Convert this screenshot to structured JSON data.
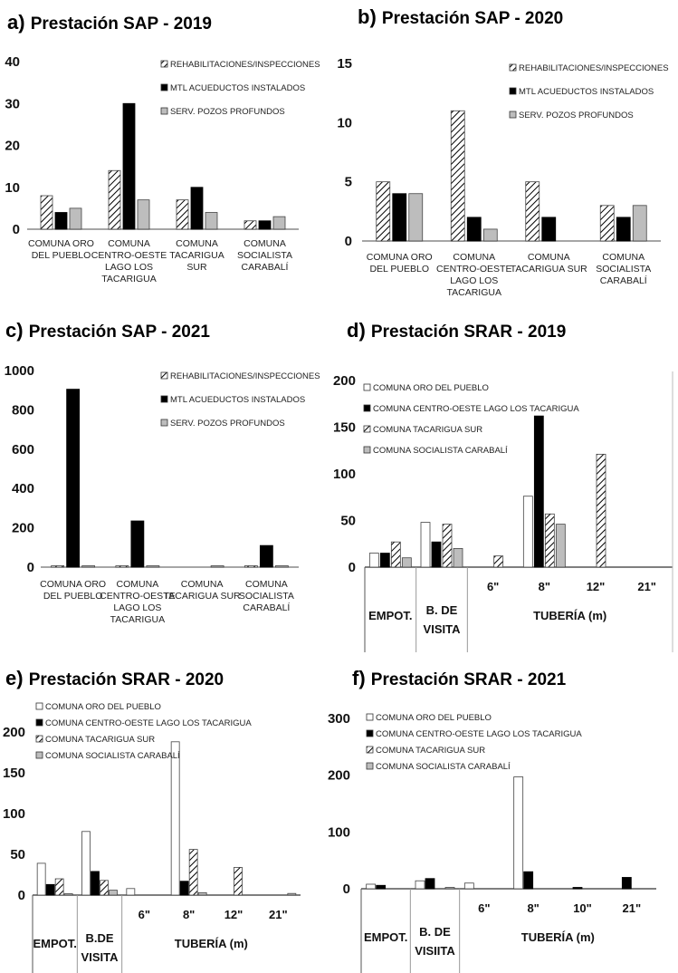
{
  "chart_data": [
    {
      "id": "a",
      "panel_label": "a)",
      "type": "bar",
      "title": "Prestación SAP - 2019",
      "categories": [
        "COMUNA ORO|DEL PUEBLO",
        "COMUNA|CENTRO-OESTE|LAGO LOS|TACARIGUA",
        "COMUNA|TACARIGUA|SUR",
        "COMUNA|SOCIALISTA|CARABALÍ"
      ],
      "series": [
        {
          "name": "REHABILITACIONES/INSPECCIONES",
          "style": "hatch",
          "values": [
            8,
            14,
            7,
            2
          ]
        },
        {
          "name": "MTL ACUEDUCTOS INSTALADOS",
          "style": "black",
          "values": [
            4,
            30,
            10,
            2
          ]
        },
        {
          "name": "SERV. POZOS PROFUNDOS",
          "style": "gray",
          "values": [
            5,
            7,
            4,
            3
          ]
        }
      ],
      "ylim": [
        0,
        40
      ],
      "yticks": [
        0,
        10,
        20,
        30,
        40
      ],
      "legend": "top-right",
      "xlabel": "",
      "ylabel": ""
    },
    {
      "id": "b",
      "panel_label": "b)",
      "type": "bar",
      "title": "Prestación SAP - 2020",
      "categories": [
        "COMUNA ORO|DEL PUEBLO",
        "COMUNA|CENTRO-OESTE|LAGO LOS|TACARIGUA",
        "COMUNA|TACARIGUA SUR",
        "COMUNA|SOCIALISTA|CARABALÍ"
      ],
      "series": [
        {
          "name": "REHABILITACIONES/INSPECCIONES",
          "style": "hatch",
          "values": [
            5,
            11,
            5,
            3
          ]
        },
        {
          "name": "MTL ACUEDUCTOS INSTALADOS",
          "style": "black",
          "values": [
            4,
            2,
            2,
            2
          ]
        },
        {
          "name": "SERV. POZOS PROFUNDOS",
          "style": "gray",
          "values": [
            4,
            1,
            0,
            3
          ]
        }
      ],
      "ylim": [
        0,
        15
      ],
      "yticks": [
        0,
        5,
        10,
        15
      ],
      "legend": "top-right",
      "xlabel": "",
      "ylabel": ""
    },
    {
      "id": "c",
      "panel_label": "c)",
      "type": "bar",
      "title": "Prestación SAP - 2021",
      "categories": [
        "COMUNA ORO|DEL PUEBLO",
        "COMUNA|CENTRO-OESTE|LAGO LOS|TACARIGUA",
        "COMUNA|TACARIGUA SUR",
        "COMUNA|SOCIALISTA|CARABALÍ"
      ],
      "series": [
        {
          "name": "REHABILITACIONES/INSPECCIONES",
          "style": "hatch",
          "values": [
            2,
            2,
            0,
            2
          ]
        },
        {
          "name": "MTL ACUEDUCTOS INSTALADOS",
          "style": "black",
          "values": [
            905,
            235,
            0,
            110
          ]
        },
        {
          "name": "SERV. POZOS PROFUNDOS",
          "style": "gray",
          "values": [
            2,
            2,
            2,
            2
          ]
        }
      ],
      "ylim": [
        0,
        1000
      ],
      "yticks": [
        0,
        200,
        400,
        600,
        800,
        1000
      ],
      "legend": "top-right",
      "xlabel": "",
      "ylabel": ""
    },
    {
      "id": "d",
      "panel_label": "d)",
      "type": "bar",
      "title": "Prestación SRAR - 2019",
      "categories": [
        "EMPOT.",
        "B. DE|VISITA",
        "6\"",
        "8\"",
        "12\"",
        "21\""
      ],
      "group_label": "TUBERÍA (m)",
      "series": [
        {
          "name": "COMUNA ORO DEL PUEBLO",
          "style": "white",
          "values": [
            15,
            48,
            0,
            76,
            0,
            0
          ]
        },
        {
          "name": "COMUNA CENTRO-OESTE LAGO LOS TACARIGUA",
          "style": "black",
          "values": [
            15,
            27,
            0,
            162,
            0,
            0
          ]
        },
        {
          "name": "COMUNA TACARIGUA SUR",
          "style": "hatch",
          "values": [
            27,
            46,
            12,
            57,
            121,
            0
          ]
        },
        {
          "name": "COMUNA SOCIALISTA CARABALÍ",
          "style": "gray",
          "values": [
            10,
            20,
            0,
            46,
            0,
            0
          ]
        }
      ],
      "ylim": [
        0,
        200
      ],
      "yticks": [
        0,
        50,
        100,
        150,
        200
      ],
      "legend": "top-left",
      "xlabel": "",
      "ylabel": ""
    },
    {
      "id": "e",
      "panel_label": "e)",
      "type": "bar",
      "title": "Prestación SRAR - 2020",
      "categories": [
        "EMPOT.",
        "B.DE|VISITA",
        "6\"",
        "8\"",
        "12\"",
        "21\""
      ],
      "group_label": "TUBERÍA (m)",
      "series": [
        {
          "name": "COMUNA ORO DEL PUEBLO",
          "style": "white",
          "values": [
            39,
            78,
            8,
            188,
            0,
            0
          ]
        },
        {
          "name": "COMUNA CENTRO-OESTE LAGO LOS TACARIGUA",
          "style": "black",
          "values": [
            13,
            29,
            0,
            17,
            0,
            0
          ]
        },
        {
          "name": "COMUNA TACARIGUA SUR",
          "style": "hatch",
          "values": [
            20,
            18,
            0,
            56,
            34,
            0
          ]
        },
        {
          "name": "COMUNA SOCIALISTA CARABALÍ",
          "style": "gray",
          "values": [
            1,
            6,
            0,
            3,
            0,
            2
          ]
        }
      ],
      "ylim": [
        0,
        200
      ],
      "yticks": [
        0,
        50,
        100,
        150,
        200
      ],
      "legend": "top-left",
      "xlabel": "",
      "ylabel": ""
    },
    {
      "id": "f",
      "panel_label": "f)",
      "type": "bar",
      "title": "Prestación SRAR - 2021",
      "categories": [
        "EMPOT.",
        "B. DE|VISIITA",
        "6\"",
        "8\"",
        "10\"",
        "21\""
      ],
      "group_label": "TUBERÍA (m)",
      "series": [
        {
          "name": "COMUNA ORO DEL PUEBLO",
          "style": "white",
          "values": [
            8,
            14,
            10,
            197,
            0,
            0
          ]
        },
        {
          "name": "COMUNA CENTRO-OESTE LAGO LOS TACARIGUA",
          "style": "black",
          "values": [
            6,
            18,
            0,
            30,
            2,
            20
          ]
        },
        {
          "name": "COMUNA TACARIGUA SUR",
          "style": "hatch",
          "values": [
            0,
            0,
            0,
            0,
            0,
            0
          ]
        },
        {
          "name": "COMUNA SOCIALISTA CARABALÍ",
          "style": "gray",
          "values": [
            0,
            2,
            0,
            0,
            0,
            0
          ]
        }
      ],
      "ylim": [
        0,
        300
      ],
      "yticks": [
        0,
        100,
        200,
        300
      ],
      "legend": "top-left",
      "xlabel": "",
      "ylabel": ""
    }
  ],
  "colors": {
    "black": "#000000",
    "gray": "#bdbdbd",
    "white": "#ffffff",
    "hatch_stroke": "#000000",
    "axis": "#888888"
  }
}
